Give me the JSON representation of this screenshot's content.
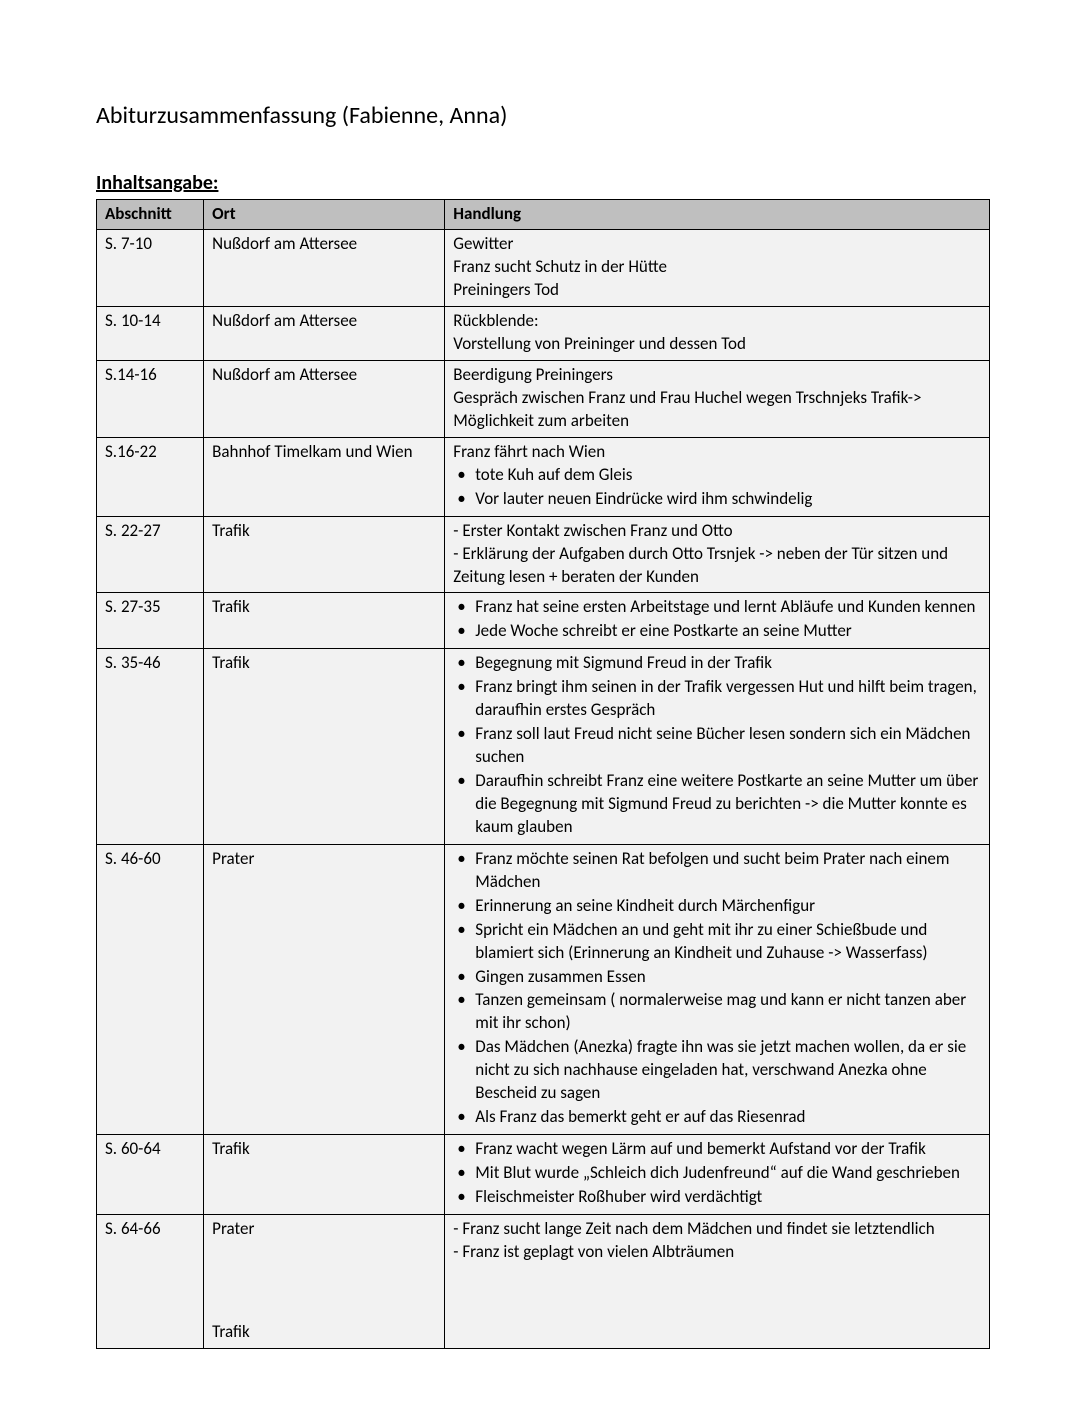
{
  "title": "Abiturzusammenfassung (Fabienne, Anna)",
  "sectionHeading": "Inhaltsangabe:",
  "columns": {
    "c0": "Abschnitt",
    "c1": "Ort",
    "c2": "Handlung"
  },
  "rows": {
    "r0": {
      "abschnitt": "S. 7-10",
      "ort": "Nußdorf am Attersee",
      "lines": [
        "Gewitter",
        "Franz sucht Schutz in der Hütte",
        "Preiningers Tod"
      ]
    },
    "r1": {
      "abschnitt": "S. 10-14",
      "ort": "Nußdorf am Attersee",
      "lines": [
        "Rückblende:",
        "Vorstellung von Preininger und dessen Tod"
      ]
    },
    "r2": {
      "abschnitt": "S.14-16",
      "ort": "Nußdorf am Attersee",
      "lines": [
        "Beerdigung Preiningers",
        "Gespräch zwischen Franz und Frau Huchel wegen Trschnjeks Trafik-> Möglichkeit zum arbeiten"
      ]
    },
    "r3": {
      "abschnitt": "S.16-22",
      "ort": "Bahnhof Timelkam und Wien",
      "lines": [
        "Franz fährt nach Wien"
      ],
      "bullets": [
        "tote Kuh auf dem Gleis",
        "Vor lauter neuen Eindrücke wird ihm schwindelig"
      ]
    },
    "r4": {
      "abschnitt": "S. 22-27",
      "ort": "Trafik",
      "lines": [
        "- Erster Kontakt zwischen Franz und Otto",
        "- Erklärung der Aufgaben durch Otto Trsnjek -> neben der Tür sitzen und Zeitung lesen + beraten der Kunden"
      ]
    },
    "r5": {
      "abschnitt": "S. 27-35",
      "ort": "Trafik",
      "bullets": [
        "Franz hat seine ersten Arbeitstage und lernt Abläufe und Kunden kennen",
        "Jede Woche schreibt er eine Postkarte an seine Mutter"
      ]
    },
    "r6": {
      "abschnitt": "S. 35-46",
      "ort": "Trafik",
      "bullets": [
        "Begegnung mit Sigmund Freud in der Trafik",
        "Franz bringt ihm seinen in der Trafik vergessen Hut und hilft beim tragen, daraufhin erstes Gespräch",
        "Franz soll laut Freud nicht seine Bücher lesen sondern sich ein Mädchen suchen",
        "Daraufhin schreibt Franz eine weitere Postkarte an seine Mutter um über die Begegnung mit Sigmund Freud zu berichten -> die Mutter konnte es kaum glauben"
      ]
    },
    "r7": {
      "abschnitt": "S. 46-60",
      "ort": "Prater",
      "bullets": [
        "Franz möchte seinen Rat befolgen und sucht beim Prater nach einem Mädchen",
        "Erinnerung an seine Kindheit durch Märchenfigur",
        "Spricht ein Mädchen an und geht mit ihr zu einer Schießbude und blamiert sich (Erinnerung an Kindheit und Zuhause -> Wasserfass)",
        "Gingen zusammen Essen",
        "Tanzen gemeinsam ( normalerweise mag und kann er nicht tanzen aber mit ihr schon)",
        "Das Mädchen (Anezka) fragte ihn was sie jetzt machen wollen, da er sie nicht zu sich nachhause eingeladen hat, verschwand Anezka ohne Bescheid zu sagen",
        "Als Franz das bemerkt geht er auf das Riesenrad"
      ]
    },
    "r8": {
      "abschnitt": "S. 60-64",
      "ort": "Trafik",
      "bullets": [
        "Franz wacht wegen Lärm auf und bemerkt Aufstand vor der Trafik",
        "Mit Blut wurde „Schleich dich Judenfreund“ auf die Wand geschrieben",
        "Fleischmeister Roßhuber wird verdächtigt"
      ]
    },
    "r9": {
      "abschnitt": "S. 64-66",
      "ort1": "Prater",
      "ort2": "Trafik",
      "lines": [
        "- Franz sucht lange Zeit nach dem Mädchen und findet sie letztendlich",
        "- Franz ist geplagt von vielen Albträumen"
      ]
    }
  }
}
